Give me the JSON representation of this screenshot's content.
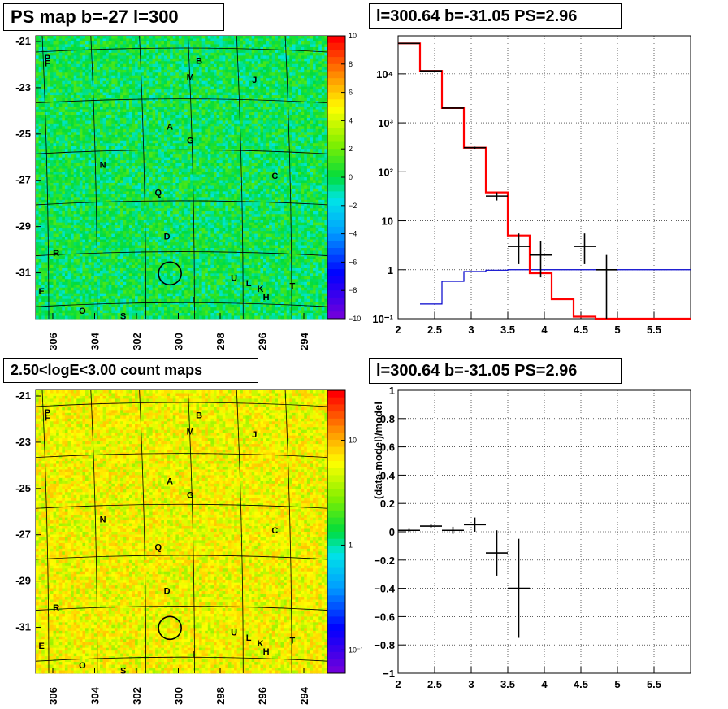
{
  "titles": {
    "tl": "PS map b=-27 l=300",
    "tr": "l=300.64 b=-31.05 PS=2.96",
    "bl": "2.50<logE<3.00 count maps",
    "br": "l=300.64 b=-31.05 PS=2.96"
  },
  "colors": {
    "data": "#000000",
    "model": "#ff0000",
    "background": "#0000cc"
  },
  "chart_data": [
    {
      "type": "heatmap",
      "title": "PS map b=-27 l=300",
      "x_ticks": [
        "306",
        "304",
        "302",
        "300",
        "298",
        "296",
        "294"
      ],
      "y_ticks": [
        "-21",
        "-23",
        "-25",
        "-27",
        "-29",
        "-31"
      ],
      "colorbar_ticks": [
        "10",
        "8",
        "6",
        "4",
        "2",
        "0",
        "−2",
        "−4",
        "−6",
        "−8",
        "−10"
      ],
      "colorbar_range": [
        -10,
        10
      ],
      "palette": "rainbow",
      "typical_value": 0,
      "source_labels": [
        "P",
        "F",
        "B",
        "M",
        "J",
        "A",
        "G",
        "N",
        "C",
        "Q",
        "D",
        "R",
        "U",
        "K",
        "H",
        "E",
        "I",
        "L",
        "T",
        "O",
        "S"
      ],
      "marker": {
        "l": 300.64,
        "b": -31.05
      }
    },
    {
      "type": "line",
      "title": "l=300.64 b=-31.05 PS=2.96",
      "xlabel": "",
      "ylabel": "",
      "xlim": [
        2,
        6
      ],
      "ylim": [
        0.1,
        60000
      ],
      "ylog": true,
      "x_ticks": [
        "2",
        "2.5",
        "3",
        "3.5",
        "4",
        "4.5",
        "5",
        "5.5"
      ],
      "y_ticks": [
        "10⁻¹",
        "1",
        "10",
        "10²",
        "10³",
        "10⁴"
      ],
      "grid": true,
      "series": [
        {
          "role": "total_model",
          "edges": [
            2,
            2.3,
            2.6,
            2.9,
            3.2,
            3.5,
            3.8,
            4.1,
            4.4,
            4.7,
            5.0,
            6.0
          ],
          "values": [
            42000,
            11500,
            2000,
            310,
            38,
            5,
            0.85,
            0.25,
            0.11,
            0.1,
            0.1
          ]
        },
        {
          "role": "source_model",
          "edges": [
            2.3,
            2.6,
            2.9,
            3.2,
            3.5,
            4.5,
            6.0
          ],
          "values": [
            0.2,
            0.58,
            0.92,
            0.98,
            1.0,
            1.0
          ]
        },
        {
          "role": "data",
          "points": [
            {
              "x": 2.15,
              "y": 42000,
              "xerr": 0.15,
              "ylo": 41500,
              "yhi": 42500
            },
            {
              "x": 2.45,
              "y": 11500,
              "xerr": 0.15,
              "ylo": 11300,
              "yhi": 11700
            },
            {
              "x": 2.75,
              "y": 2000,
              "xerr": 0.15,
              "ylo": 1950,
              "yhi": 2050
            },
            {
              "x": 3.05,
              "y": 310,
              "xerr": 0.15,
              "ylo": 295,
              "yhi": 325
            },
            {
              "x": 3.35,
              "y": 32,
              "xerr": 0.15,
              "ylo": 26,
              "yhi": 38
            },
            {
              "x": 3.65,
              "y": 3,
              "xerr": 0.15,
              "ylo": 1.3,
              "yhi": 5.5
            },
            {
              "x": 3.95,
              "y": 2,
              "xerr": 0.15,
              "ylo": 0.7,
              "yhi": 3.8
            },
            {
              "x": 4.55,
              "y": 3,
              "xerr": 0.15,
              "ylo": 1.3,
              "yhi": 5.5
            },
            {
              "x": 4.85,
              "y": 1,
              "xerr": 0.15,
              "ylo": 0.1,
              "yhi": 2
            }
          ]
        }
      ]
    },
    {
      "type": "heatmap",
      "title": "2.50<logE<3.00 count maps",
      "x_ticks": [
        "306",
        "304",
        "302",
        "300",
        "298",
        "296",
        "294"
      ],
      "y_ticks": [
        "-21",
        "-23",
        "-25",
        "-27",
        "-29",
        "-31"
      ],
      "colorbar_ticks": [
        "10",
        "1",
        "10⁻¹"
      ],
      "colorbar_log": true,
      "colorbar_range": [
        0.06,
        30
      ],
      "palette": "rainbow",
      "typical_value": 6,
      "source_labels": [
        "P",
        "F",
        "B",
        "M",
        "J",
        "A",
        "G",
        "N",
        "C",
        "Q",
        "D",
        "R",
        "U",
        "K",
        "H",
        "E",
        "I",
        "L",
        "T",
        "O",
        "S"
      ],
      "marker": {
        "l": 300.64,
        "b": -31.05
      }
    },
    {
      "type": "scatter",
      "title": "l=300.64 b=-31.05 PS=2.96",
      "xlabel": "",
      "ylabel": "(data-model)/model",
      "xlim": [
        2,
        6
      ],
      "ylim": [
        -1,
        1
      ],
      "x_ticks": [
        "2",
        "2.5",
        "3",
        "3.5",
        "4",
        "4.5",
        "5",
        "5.5"
      ],
      "y_ticks": [
        "1",
        "0.8",
        "0.6",
        "0.4",
        "0.2",
        "0",
        "−0.2",
        "−0.4",
        "−0.6",
        "−0.8",
        "−1"
      ],
      "grid": true,
      "series": [
        {
          "role": "residual",
          "points": [
            {
              "x": 2.15,
              "y": 0.01,
              "xerr": 0.15,
              "yerr": 0.01
            },
            {
              "x": 2.45,
              "y": 0.04,
              "xerr": 0.15,
              "yerr": 0.015
            },
            {
              "x": 2.75,
              "y": 0.01,
              "xerr": 0.15,
              "yerr": 0.025
            },
            {
              "x": 3.05,
              "y": 0.05,
              "xerr": 0.15,
              "yerr": 0.05
            },
            {
              "x": 3.35,
              "y": -0.15,
              "xerr": 0.15,
              "yerr": 0.16
            },
            {
              "x": 3.65,
              "y": -0.4,
              "xerr": 0.15,
              "yerr": 0.35
            }
          ]
        }
      ]
    }
  ]
}
